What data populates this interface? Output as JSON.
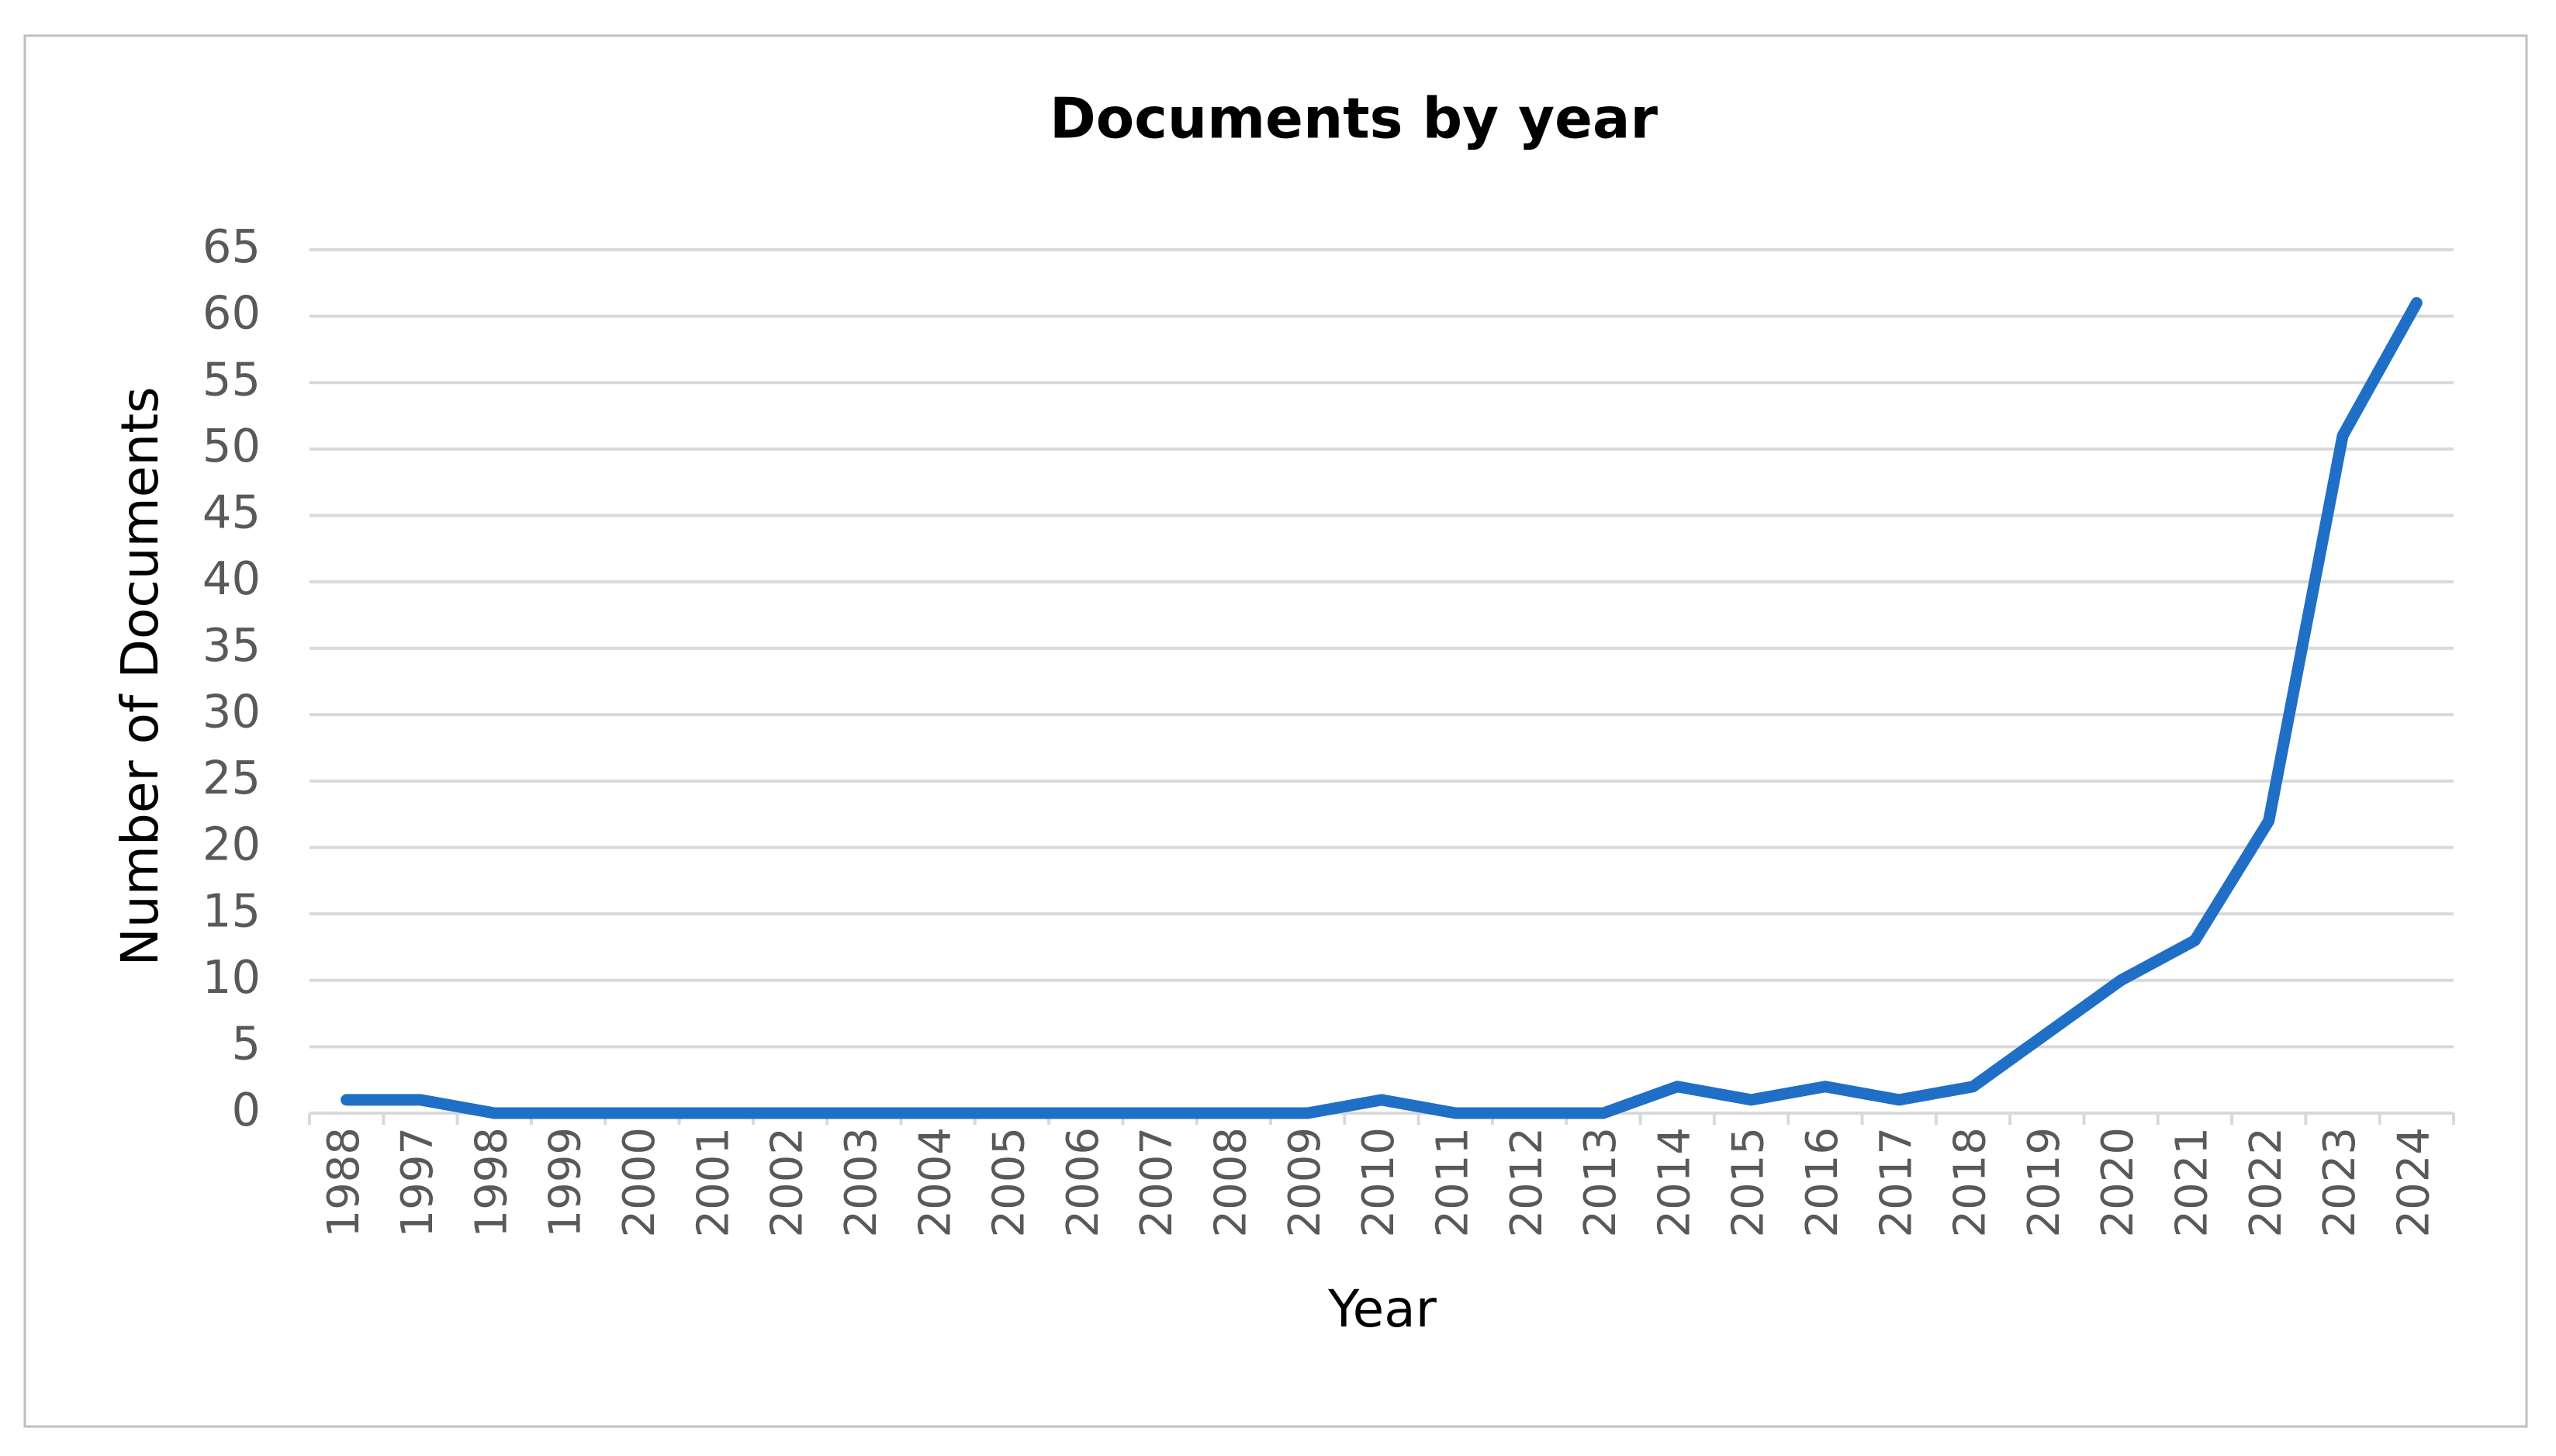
{
  "chart_data": {
    "type": "line",
    "title": "Documents by year",
    "x_label": "Year",
    "y_label": "Number of Documents",
    "categories": [
      "1988",
      "1997",
      "1998",
      "1999",
      "2000",
      "2001",
      "2002",
      "2003",
      "2004",
      "2005",
      "2006",
      "2007",
      "2008",
      "2009",
      "2010",
      "2011",
      "2012",
      "2013",
      "2014",
      "2015",
      "2016",
      "2017",
      "2018",
      "2019",
      "2020",
      "2021",
      "2022",
      "2023",
      "2024"
    ],
    "series": [
      {
        "name": "Documents",
        "color": "#1f6fc6",
        "values": [
          1,
          1,
          0,
          0,
          0,
          0,
          0,
          0,
          0,
          0,
          0,
          0,
          0,
          0,
          1,
          0,
          0,
          0,
          2,
          1,
          2,
          1,
          2,
          6,
          10,
          13,
          22,
          51,
          61
        ]
      }
    ],
    "ylim": [
      0,
      65
    ],
    "yticks": [
      0,
      5,
      10,
      15,
      20,
      25,
      30,
      35,
      40,
      45,
      50,
      55,
      60,
      65
    ],
    "grid": true
  }
}
